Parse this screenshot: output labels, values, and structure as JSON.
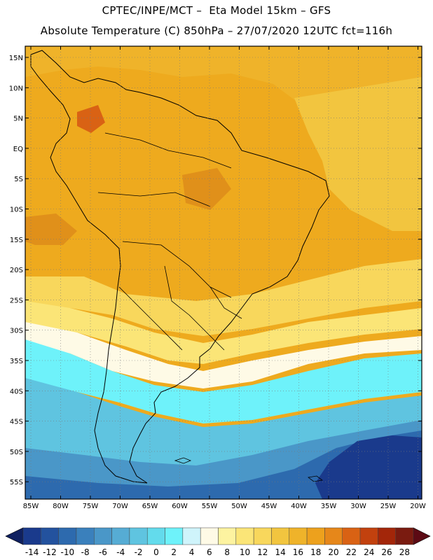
{
  "title_line1": "CPTEC/INPE/MCT –  Eta Model 15km – GFS",
  "title_line2": "Absolute Temperature (C) 850hPa – 27/07/2020 12UTC fct=116h",
  "lat_labels": [
    "15N",
    "10N",
    "5N",
    "EQ",
    "5S",
    "10S",
    "15S",
    "20S",
    "25S",
    "30S",
    "35S",
    "40S",
    "45S",
    "50S",
    "55S"
  ],
  "lon_labels": [
    "85W",
    "80W",
    "75W",
    "70W",
    "65W",
    "60W",
    "55W",
    "50W",
    "45W",
    "40W",
    "35W",
    "30W",
    "25W",
    "20W"
  ],
  "colorbar": {
    "ticks": [
      "-14",
      "-12",
      "-10",
      "-8",
      "-6",
      "-4",
      "-2",
      "0",
      "2",
      "4",
      "6",
      "8",
      "10",
      "12",
      "14",
      "16",
      "18",
      "20",
      "22",
      "24",
      "26",
      "28"
    ],
    "colors": [
      "#1a3a8c",
      "#23529e",
      "#2d6aae",
      "#3a80bc",
      "#4a97c8",
      "#56acd4",
      "#5fc4e0",
      "#63dbec",
      "#6ef2fa",
      "#cff4fb",
      "#fefae6",
      "#fdf3a0",
      "#fbe577",
      "#f8d75c",
      "#f2c53f",
      "#efb32a",
      "#eda11d",
      "#e6871a",
      "#d96214",
      "#c2410e",
      "#a32609",
      "#7a1b10"
    ],
    "low_arrow_color": "#0f2060",
    "high_arrow_color": "#5c0a14"
  },
  "colors": {
    "warm_orange": "#eeaa1e",
    "dark_orange": "#e0901a",
    "yellow": "#f3c63f",
    "light_yellow": "#fbe577",
    "pale": "#fefae6",
    "cyan_light": "#6ef2fa",
    "cyan": "#5fc4e0",
    "blue": "#3a80bc",
    "deep_blue": "#1a3a8c"
  }
}
